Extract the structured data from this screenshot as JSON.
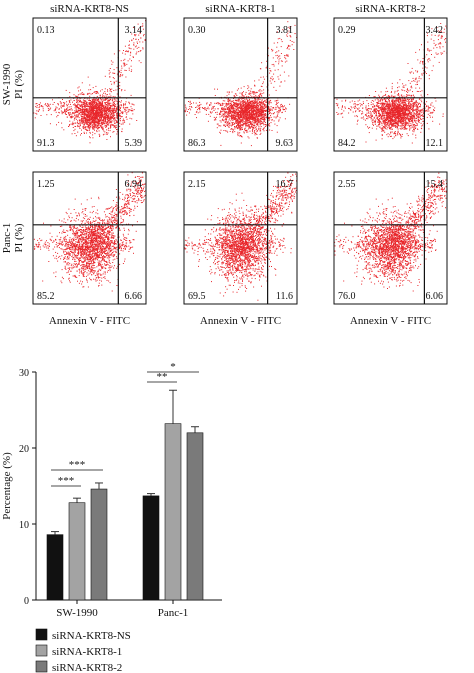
{
  "chart_data": [
    {
      "type": "scatter",
      "subtype": "flow-cytometry-quadrants",
      "column_titles": [
        "siRNA-KRT8-NS",
        "siRNA-KRT8-1",
        "siRNA-KRT8-2"
      ],
      "rows": [
        {
          "cell_line": "SW-1990",
          "ylabel": "PI (%)",
          "panels": [
            {
              "quadrants": {
                "ul": "0.13",
                "ur": "3.14",
                "ll": "91.3",
                "lr": "5.39"
              }
            },
            {
              "quadrants": {
                "ul": "0.30",
                "ur": "3.81",
                "ll": "86.3",
                "lr": "9.63"
              }
            },
            {
              "quadrants": {
                "ul": "0.29",
                "ur": "3.42",
                "ll": "84.2",
                "lr": "12.1"
              }
            }
          ]
        },
        {
          "cell_line": "Panc-1",
          "ylabel": "PI (%)",
          "panels": [
            {
              "quadrants": {
                "ul": "1.25",
                "ur": "6.94",
                "ll": "85.2",
                "lr": "6.66"
              }
            },
            {
              "quadrants": {
                "ul": "2.15",
                "ur": "16.7",
                "ll": "69.5",
                "lr": "11.6"
              }
            },
            {
              "quadrants": {
                "ul": "2.55",
                "ur": "15.4",
                "ll": "76.0",
                "lr": "6.06"
              }
            }
          ]
        }
      ],
      "xlabel": "Annexin V - FITC",
      "point_color": "#e8262b"
    },
    {
      "type": "bar",
      "categories": [
        "SW-1990",
        "Panc-1"
      ],
      "series": [
        {
          "name": "siRNA-KRT8-NS",
          "values": [
            8.6,
            13.7
          ],
          "errors": [
            0.4,
            0.3
          ],
          "color": "#111111"
        },
        {
          "name": "siRNA-KRT8-1",
          "values": [
            12.8,
            23.2
          ],
          "errors": [
            0.6,
            4.4
          ],
          "color": "#a3a3a3"
        },
        {
          "name": "siRNA-KRT8-2",
          "values": [
            14.6,
            22.0
          ],
          "errors": [
            0.8,
            0.8
          ],
          "color": "#7a7a7a"
        }
      ],
      "significance": [
        {
          "category": "SW-1990",
          "pair": [
            0,
            1
          ],
          "label": "***"
        },
        {
          "category": "SW-1990",
          "pair": [
            0,
            2
          ],
          "label": "***"
        },
        {
          "category": "Panc-1",
          "pair": [
            0,
            1
          ],
          "label": "**"
        },
        {
          "category": "Panc-1",
          "pair": [
            0,
            2
          ],
          "label": "*"
        }
      ],
      "ylabel": "Percentage (%)",
      "yticks": [
        0,
        10,
        20,
        30
      ],
      "ylim": [
        0,
        30
      ],
      "grid": false,
      "legend_position": "bottom-left"
    }
  ]
}
